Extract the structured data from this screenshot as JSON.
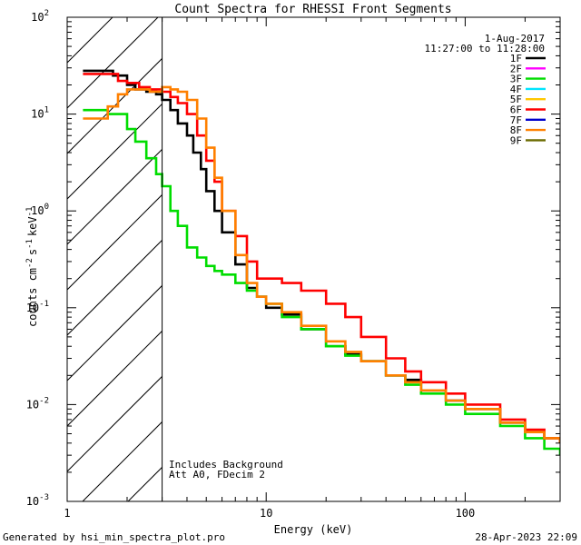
{
  "chart_data": {
    "type": "line",
    "title": "Count Spectra for RHESSI Front Segments",
    "xlabel": "Energy (keV)",
    "ylabel": "counts cm",
    "ylabel_parts": {
      "cm_exp": "-2",
      "s": "s",
      "s_exp": "-1",
      "kev": "keV",
      "kev_exp": "-1"
    },
    "xscale": "log",
    "yscale": "log",
    "xlim": [
      1,
      300
    ],
    "ylim": [
      0.001,
      100
    ],
    "x_ticks": [
      {
        "value": 1,
        "label": "1"
      },
      {
        "value": 10,
        "label": "10"
      },
      {
        "value": 100,
        "label": "100"
      }
    ],
    "y_ticks": [
      {
        "value": 0.001,
        "base": "10",
        "exp": "-3"
      },
      {
        "value": 0.01,
        "base": "10",
        "exp": "-2"
      },
      {
        "value": 0.1,
        "base": "10",
        "exp": "-1"
      },
      {
        "value": 1,
        "base": "10",
        "exp": "0"
      },
      {
        "value": 10,
        "base": "10",
        "exp": "1"
      },
      {
        "value": 100,
        "base": "10",
        "exp": "2"
      }
    ],
    "excluded_region": {
      "x_from": 1,
      "x_to": 3
    },
    "date": "1-Aug-2017",
    "time_range": "11:27:00 to 11:28:00",
    "annotations": [
      "Includes Background",
      "Att A0, FDecim 2"
    ],
    "legend_position": "top-right",
    "legend": [
      {
        "name": "1F",
        "color": "#000000"
      },
      {
        "name": "2F",
        "color": "#ff00ff"
      },
      {
        "name": "3F",
        "color": "#00dd00"
      },
      {
        "name": "4F",
        "color": "#00e5ff"
      },
      {
        "name": "5F",
        "color": "#ffc800"
      },
      {
        "name": "6F",
        "color": "#ff0000"
      },
      {
        "name": "7F",
        "color": "#0000cc"
      },
      {
        "name": "8F",
        "color": "#ff8000"
      },
      {
        "name": "9F",
        "color": "#6b6b00"
      }
    ],
    "series": [
      {
        "name": "1F",
        "color": "#000000",
        "x": [
          1.2,
          1.5,
          1.7,
          2,
          2.2,
          2.5,
          2.8,
          3,
          3.3,
          3.6,
          4,
          4.3,
          4.7,
          5,
          5.5,
          6,
          7,
          8,
          9,
          10,
          12,
          15,
          20,
          25,
          30,
          40,
          50,
          60,
          80,
          100,
          150,
          200,
          250,
          300
        ],
        "y": [
          28,
          28,
          25,
          20,
          18,
          17,
          16,
          14,
          11,
          8,
          6,
          4,
          2.7,
          1.6,
          1,
          0.6,
          0.28,
          0.16,
          0.13,
          0.1,
          0.085,
          0.06,
          0.04,
          0.033,
          0.028,
          0.02,
          0.018,
          0.014,
          0.011,
          0.009,
          0.0065,
          0.0052,
          0.0045,
          0.004
        ]
      },
      {
        "name": "3F",
        "color": "#00dd00",
        "x": [
          1.2,
          1.4,
          1.6,
          2,
          2.2,
          2.5,
          2.8,
          3,
          3.3,
          3.6,
          4,
          4.5,
          5,
          5.5,
          6,
          7,
          8,
          9,
          10,
          12,
          15,
          20,
          25,
          30,
          40,
          50,
          60,
          80,
          100,
          150,
          200,
          250,
          300
        ],
        "y": [
          11,
          11,
          10,
          7,
          5.2,
          3.5,
          2.4,
          1.8,
          1,
          0.7,
          0.42,
          0.33,
          0.27,
          0.24,
          0.22,
          0.18,
          0.15,
          0.13,
          0.11,
          0.08,
          0.06,
          0.04,
          0.032,
          0.028,
          0.02,
          0.016,
          0.013,
          0.01,
          0.008,
          0.006,
          0.0045,
          0.0035,
          0.003
        ]
      },
      {
        "name": "6F",
        "color": "#ff0000",
        "x": [
          1.2,
          1.5,
          1.8,
          2,
          2.3,
          2.6,
          3,
          3.3,
          3.6,
          4,
          4.5,
          5,
          5.5,
          6,
          7,
          8,
          9,
          10,
          12,
          15,
          20,
          25,
          30,
          40,
          50,
          60,
          80,
          100,
          150,
          200,
          250,
          300
        ],
        "y": [
          26,
          26,
          22,
          21,
          19,
          18,
          17,
          15,
          13,
          10,
          6,
          3.3,
          2,
          1,
          0.55,
          0.3,
          0.2,
          0.2,
          0.18,
          0.15,
          0.11,
          0.08,
          0.05,
          0.03,
          0.022,
          0.017,
          0.013,
          0.01,
          0.007,
          0.0055,
          0.0045,
          0.004
        ]
      },
      {
        "name": "8F",
        "color": "#ff8000",
        "x": [
          1.2,
          1.5,
          1.6,
          1.8,
          2,
          2.3,
          2.6,
          3,
          3.3,
          3.6,
          4,
          4.5,
          5,
          5.5,
          6,
          7,
          8,
          9,
          10,
          12,
          15,
          20,
          25,
          30,
          40,
          50,
          60,
          80,
          100,
          150,
          200,
          250,
          300
        ],
        "y": [
          9,
          9,
          12,
          16,
          18,
          18,
          17,
          19,
          18,
          17,
          14,
          9,
          4.5,
          2.2,
          1,
          0.35,
          0.18,
          0.13,
          0.11,
          0.09,
          0.065,
          0.045,
          0.035,
          0.028,
          0.02,
          0.017,
          0.014,
          0.011,
          0.009,
          0.0065,
          0.0052,
          0.0045,
          0.004
        ]
      }
    ]
  },
  "footer": {
    "generated_by": "Generated by hsi_min_spectra_plot.pro",
    "timestamp": "28-Apr-2023 22:09"
  }
}
